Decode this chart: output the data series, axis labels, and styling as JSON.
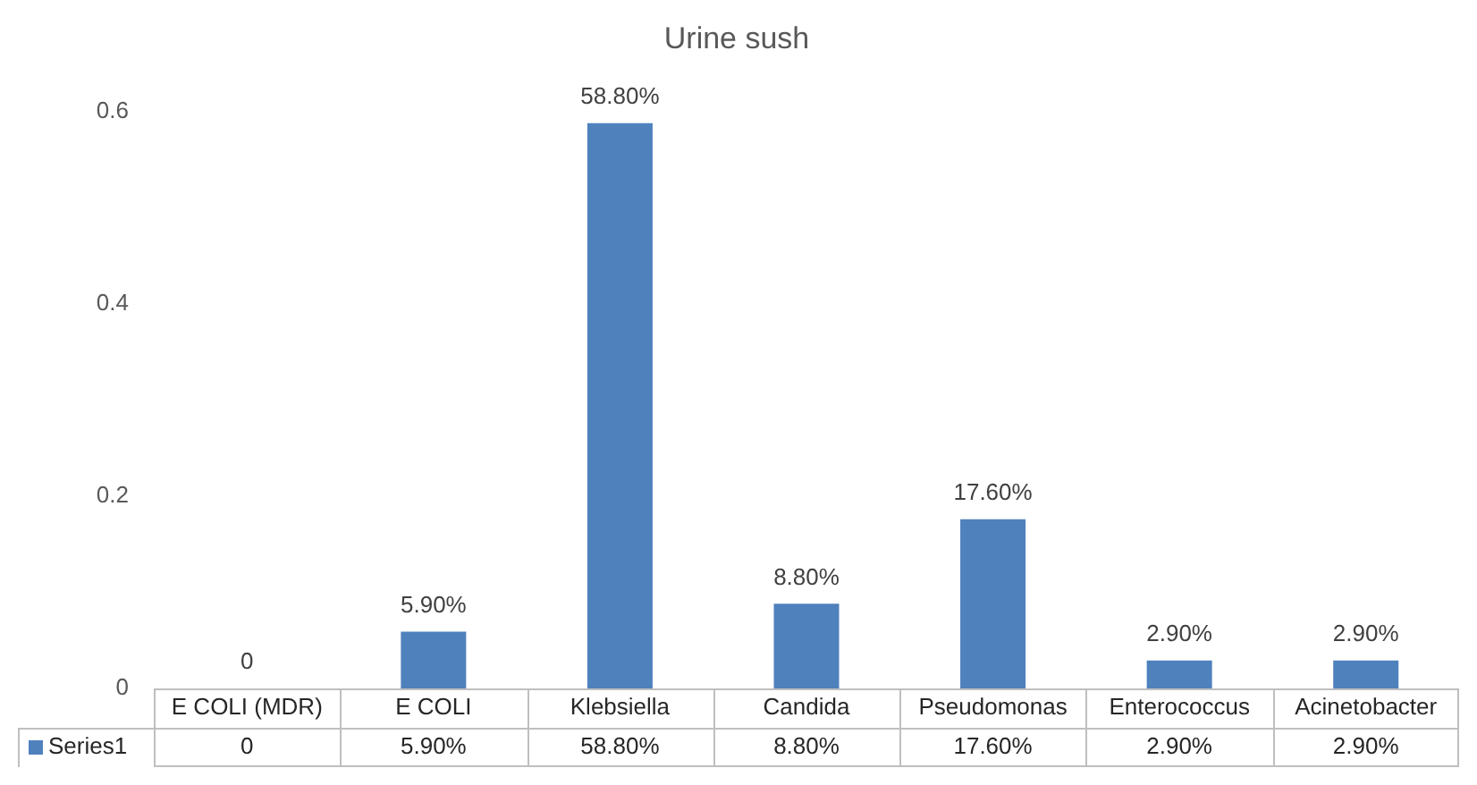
{
  "chart_data": {
    "type": "bar",
    "title": "Urine sush",
    "categories": [
      "E COLI (MDR)",
      "E COLI",
      "Klebsiella",
      "Candida",
      "Pseudomonas",
      "Enterococcus",
      "Acinetobacter"
    ],
    "series": [
      {
        "name": "Series1",
        "color": "#4f81bd",
        "values": [
          0,
          0.059,
          0.588,
          0.088,
          0.176,
          0.029,
          0.029
        ],
        "value_labels": [
          "0",
          "5.90%",
          "58.80%",
          "8.80%",
          "17.60%",
          "2.90%",
          "2.90%"
        ]
      }
    ],
    "ylim": [
      0,
      0.6
    ],
    "yticks": [
      0,
      0.2,
      0.4,
      0.6
    ],
    "legend": "bottom"
  }
}
